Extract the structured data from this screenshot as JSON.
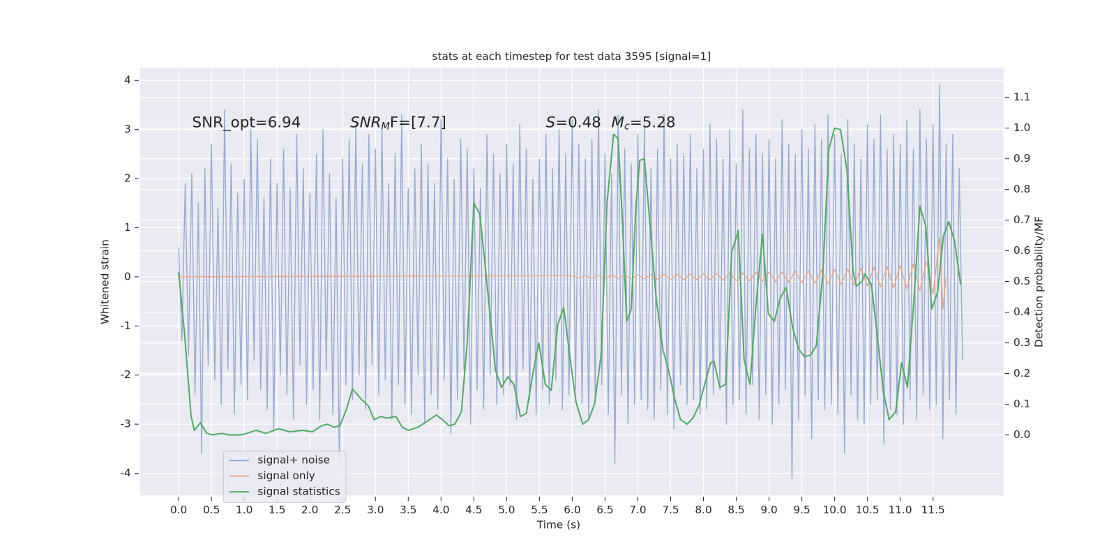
{
  "chart_data": {
    "type": "line",
    "title": "stats at each timestep for test data 3595 [signal=1]",
    "x_label": "Time (s)",
    "y_label": "Whitened strain",
    "y2_label": "Detection probability/MF",
    "xlim": [
      -0.586,
      12.575
    ],
    "ylim": [
      -4.45,
      4.26
    ],
    "y2lim": [
      -0.197,
      1.197
    ],
    "xticks": [
      {
        "value": 0,
        "label": "0.0"
      },
      0.5,
      {
        "value": 1,
        "label": "1.0"
      },
      1.5,
      {
        "value": 2,
        "label": "2.0"
      },
      2.5,
      {
        "value": 3,
        "label": "3.0"
      },
      3.5,
      {
        "value": 4,
        "label": "4.0"
      },
      4.5,
      {
        "value": 5,
        "label": "5.0"
      },
      5.5,
      {
        "value": 6,
        "label": "6.0"
      },
      6.5,
      {
        "value": 7,
        "label": "7.0"
      },
      7.5,
      {
        "value": 8,
        "label": "8.0"
      },
      8.5,
      {
        "value": 9,
        "label": "9.0"
      },
      9.5,
      {
        "value": 10,
        "label": "10.0"
      },
      10.5,
      {
        "value": 11,
        "label": "11.0"
      },
      11.5
    ],
    "yticks": [
      -4,
      -3,
      -2,
      -1,
      0,
      1,
      2,
      3,
      4
    ],
    "y2ticks": [
      {
        "value": 0,
        "label": "0.0"
      },
      0.1,
      0.2,
      0.3,
      0.4,
      0.5,
      0.6,
      0.7,
      0.8,
      0.9,
      {
        "value": 1,
        "label": "1.0"
      },
      1.1
    ],
    "grid": true,
    "legend": "lower left",
    "annotations": [
      {
        "text": "SNR_opt=6.94"
      },
      {
        "base": "SNR",
        "sub": "M",
        "tail": "F=[7.7]"
      },
      {
        "base": "S",
        "tail": "=0.48"
      },
      {
        "base": "M",
        "sub": "c",
        "tail": "=5.28"
      }
    ],
    "series": [
      {
        "name": "signal+ noise",
        "color": "#9aabd0",
        "x": [
          0,
          0.05,
          0.1,
          0.15,
          0.2,
          0.25,
          0.3,
          0.35,
          0.4,
          0.45,
          0.5,
          0.55,
          0.6,
          0.65,
          0.7,
          0.75,
          0.8,
          0.85,
          0.9,
          0.95,
          1,
          1.05,
          1.1,
          1.15,
          1.2,
          1.25,
          1.3,
          1.35,
          1.4,
          1.45,
          1.5,
          1.55,
          1.6,
          1.65,
          1.7,
          1.75,
          1.8,
          1.85,
          1.9,
          1.95,
          2,
          2.05,
          2.1,
          2.15,
          2.2,
          2.25,
          2.3,
          2.35,
          2.4,
          2.45,
          2.5,
          2.55,
          2.6,
          2.65,
          2.7,
          2.75,
          2.8,
          2.85,
          2.9,
          2.95,
          3,
          3.05,
          3.1,
          3.15,
          3.2,
          3.25,
          3.3,
          3.35,
          3.4,
          3.45,
          3.5,
          3.55,
          3.6,
          3.65,
          3.7,
          3.75,
          3.8,
          3.85,
          3.9,
          3.95,
          4,
          4.05,
          4.1,
          4.15,
          4.2,
          4.25,
          4.3,
          4.35,
          4.4,
          4.45,
          4.5,
          4.55,
          4.6,
          4.65,
          4.7,
          4.75,
          4.8,
          4.85,
          4.9,
          4.95,
          5,
          5.05,
          5.1,
          5.15,
          5.2,
          5.25,
          5.3,
          5.35,
          5.4,
          5.45,
          5.5,
          5.55,
          5.6,
          5.65,
          5.7,
          5.75,
          5.8,
          5.85,
          5.9,
          5.95,
          6,
          6.05,
          6.1,
          6.15,
          6.2,
          6.25,
          6.3,
          6.35,
          6.4,
          6.45,
          6.5,
          6.55,
          6.6,
          6.65,
          6.7,
          6.75,
          6.8,
          6.85,
          6.9,
          6.95,
          7,
          7.05,
          7.1,
          7.15,
          7.2,
          7.25,
          7.3,
          7.35,
          7.4,
          7.45,
          7.5,
          7.55,
          7.6,
          7.65,
          7.7,
          7.75,
          7.8,
          7.85,
          7.9,
          7.95,
          8,
          8.05,
          8.1,
          8.15,
          8.2,
          8.25,
          8.3,
          8.35,
          8.4,
          8.45,
          8.5,
          8.55,
          8.6,
          8.65,
          8.7,
          8.75,
          8.8,
          8.85,
          8.9,
          8.95,
          9,
          9.05,
          9.1,
          9.15,
          9.2,
          9.25,
          9.3,
          9.35,
          9.4,
          9.45,
          9.5,
          9.55,
          9.6,
          9.65,
          9.7,
          9.75,
          9.8,
          9.85,
          9.9,
          9.95,
          10,
          10.05,
          10.1,
          10.15,
          10.2,
          10.25,
          10.3,
          10.35,
          10.4,
          10.45,
          10.5,
          10.55,
          10.6,
          10.65,
          10.7,
          10.75,
          10.8,
          10.85,
          10.9,
          10.95,
          11,
          11.05,
          11.1,
          11.15,
          11.2,
          11.25,
          11.3,
          11.35,
          11.4,
          11.45,
          11.5,
          11.55,
          11.6,
          11.65,
          11.7,
          11.75,
          11.8,
          11.85,
          11.9,
          11.95
        ],
        "values": [
          0.6,
          -1.3,
          1.9,
          -1.6,
          2.1,
          -2.4,
          1.5,
          -3.6,
          2.2,
          -1.8,
          2.7,
          -2.1,
          1.4,
          -2.6,
          3.4,
          -1.9,
          2.3,
          -2.8,
          1.7,
          -2.2,
          2.0,
          -2.5,
          3.0,
          -1.7,
          2.8,
          -2.3,
          1.6,
          -2.7,
          2.4,
          -3.1,
          1.9,
          -2.0,
          2.6,
          -2.4,
          1.8,
          -2.9,
          2.9,
          -1.8,
          2.2,
          -2.6,
          1.7,
          -2.3,
          2.5,
          -2.9,
          3.0,
          -1.9,
          2.1,
          -2.8,
          1.6,
          -3.8,
          2.4,
          -2.2,
          2.8,
          -2.5,
          3.1,
          -2.0,
          2.3,
          -2.7,
          2.9,
          -1.8,
          2.6,
          -2.4,
          3.0,
          -2.1,
          1.9,
          -2.9,
          2.5,
          -2.2,
          3.3,
          -2.6,
          1.8,
          -2.8,
          2.2,
          -2.0,
          2.7,
          -3.0,
          2.3,
          -2.4,
          1.9,
          -2.7,
          3.2,
          -2.1,
          2.4,
          -3.2,
          2.0,
          -2.5,
          2.8,
          -1.9,
          2.6,
          -3.0,
          2.2,
          -2.3,
          1.8,
          -2.7,
          2.9,
          -2.0,
          2.5,
          -2.6,
          2.1,
          -2.4,
          2.7,
          -2.2,
          2.3,
          -2.9,
          3.1,
          -1.9,
          2.6,
          -2.5,
          2.0,
          -2.8,
          2.4,
          -2.3,
          2.9,
          -2.6,
          2.2,
          -2.1,
          3.0,
          -2.7,
          2.5,
          -2.4,
          3.2,
          -2.3,
          2.7,
          -2.6,
          2.4,
          -2.9,
          2.8,
          -2.5,
          3.4,
          -2.2,
          2.5,
          -2.8,
          2.1,
          -3.8,
          3.3,
          -2.4,
          2.6,
          -3.0,
          2.3,
          -2.6,
          2.9,
          -2.5,
          3.1,
          -2.7,
          2.2,
          -2.9,
          2.6,
          -2.3,
          3.3,
          -2.8,
          2.4,
          -3.1,
          2.7,
          -2.2,
          2.5,
          -2.6,
          2.9,
          -2.5,
          2.2,
          -2.8,
          2.6,
          -2.7,
          3.1,
          -2.4,
          2.8,
          -2.3,
          2.4,
          -3.0,
          3.0,
          -2.6,
          2.3,
          -2.5,
          3.4,
          -2.8,
          2.6,
          -2.2,
          2.9,
          -2.9,
          2.5,
          -2.4,
          2.8,
          -3.0,
          2.4,
          -2.6,
          3.2,
          -2.3,
          2.7,
          -4.1,
          2.5,
          -2.9,
          3.0,
          -2.4,
          2.6,
          -3.3,
          3.1,
          -2.5,
          2.8,
          -2.7,
          3.3,
          -2.6,
          2.9,
          -2.8,
          2.5,
          -3.6,
          3.2,
          -2.4,
          2.7,
          -2.9,
          2.4,
          -3.0,
          3.1,
          -2.6,
          2.8,
          -2.5,
          3.3,
          -3.4,
          2.6,
          -2.7,
          2.9,
          -2.8,
          2.7,
          -3.0,
          3.2,
          -2.5,
          2.6,
          -2.9,
          3.4,
          -2.4,
          2.8,
          -2.7,
          3.1,
          -2.6,
          3.9,
          -3.3,
          2.7,
          -2.5,
          2.9,
          -2.8,
          2.2,
          -1.7
        ]
      },
      {
        "name": "signal only",
        "color": "#e6a88a",
        "x": [
          0,
          6.0,
          6.1,
          6.2,
          6.3,
          6.4,
          6.5,
          6.6,
          6.7,
          6.8,
          6.9,
          7.0,
          7.1,
          7.2,
          7.3,
          7.4,
          7.5,
          7.6,
          7.7,
          7.8,
          7.9,
          8.0,
          8.1,
          8.2,
          8.3,
          8.4,
          8.5,
          8.6,
          8.7,
          8.8,
          8.9,
          9.0,
          9.1,
          9.2,
          9.3,
          9.4,
          9.5,
          9.6,
          9.7,
          9.8,
          9.9,
          10.0,
          10.1,
          10.2,
          10.3,
          10.4,
          10.5,
          10.6,
          10.7,
          10.8,
          10.9,
          11.0,
          11.1,
          11.2,
          11.3,
          11.4,
          11.5,
          11.6,
          11.65,
          11.7
        ],
        "values": [
          0,
          0.02,
          -0.02,
          0.02,
          -0.025,
          0.025,
          -0.03,
          0.03,
          -0.03,
          0.035,
          -0.035,
          0.04,
          -0.04,
          0.045,
          -0.045,
          0.05,
          -0.05,
          0.055,
          -0.055,
          0.06,
          -0.06,
          0.065,
          -0.065,
          0.07,
          -0.07,
          0.075,
          -0.08,
          0.08,
          -0.085,
          0.09,
          -0.09,
          0.1,
          -0.1,
          0.105,
          -0.11,
          0.115,
          -0.12,
          0.125,
          -0.13,
          0.135,
          -0.14,
          0.15,
          -0.155,
          0.16,
          -0.17,
          0.175,
          -0.185,
          0.19,
          -0.2,
          0.21,
          -0.22,
          0.23,
          -0.245,
          0.26,
          -0.28,
          0.31,
          -0.35,
          0.8,
          -0.65,
          0
        ]
      },
      {
        "name": "signal statistics",
        "color": "#55a868",
        "axis": "y2",
        "x": [
          0,
          0.09,
          0.19,
          0.24,
          0.33,
          0.43,
          0.52,
          0.66,
          0.76,
          0.95,
          1.04,
          1.18,
          1.33,
          1.52,
          1.7,
          1.89,
          2.04,
          2.18,
          2.27,
          2.37,
          2.46,
          2.56,
          2.65,
          2.79,
          2.89,
          2.98,
          3.08,
          3.17,
          3.31,
          3.41,
          3.5,
          3.65,
          3.79,
          3.93,
          4.02,
          4.12,
          4.21,
          4.31,
          4.4,
          4.5,
          4.59,
          4.69,
          4.83,
          4.92,
          5.02,
          5.11,
          5.21,
          5.3,
          5.4,
          5.49,
          5.59,
          5.68,
          5.78,
          5.87,
          5.97,
          6.06,
          6.16,
          6.25,
          6.34,
          6.44,
          6.53,
          6.63,
          6.7,
          6.76,
          6.83,
          6.9,
          6.97,
          7.03,
          7.1,
          7.19,
          7.28,
          7.38,
          7.47,
          7.56,
          7.65,
          7.75,
          7.84,
          7.93,
          8.02,
          8.11,
          8.16,
          8.25,
          8.34,
          8.43,
          8.53,
          8.62,
          8.71,
          8.8,
          8.9,
          8.99,
          9.08,
          9.17,
          9.26,
          9.36,
          9.45,
          9.54,
          9.63,
          9.72,
          9.82,
          9.91,
          10.0,
          10.09,
          10.19,
          10.28,
          10.33,
          10.42,
          10.46,
          10.56,
          10.65,
          10.74,
          10.83,
          10.93,
          11.02,
          11.11,
          11.21,
          11.3,
          11.39,
          11.48,
          11.57,
          11.66,
          11.74,
          11.83,
          11.92
        ],
        "values": [
          0.53,
          0.33,
          0.06,
          0.015,
          0.04,
          0.005,
          0.0,
          0.005,
          0.0,
          0.0,
          0.005,
          0.015,
          0.005,
          0.02,
          0.01,
          0.015,
          0.01,
          0.03,
          0.035,
          0.025,
          0.03,
          0.085,
          0.15,
          0.115,
          0.095,
          0.05,
          0.06,
          0.055,
          0.06,
          0.025,
          0.015,
          0.025,
          0.045,
          0.065,
          0.05,
          0.03,
          0.035,
          0.075,
          0.305,
          0.755,
          0.72,
          0.515,
          0.21,
          0.155,
          0.19,
          0.165,
          0.06,
          0.07,
          0.2,
          0.3,
          0.165,
          0.145,
          0.36,
          0.415,
          0.245,
          0.105,
          0.035,
          0.05,
          0.1,
          0.26,
          0.755,
          0.98,
          0.965,
          0.72,
          0.37,
          0.41,
          0.745,
          0.895,
          0.9,
          0.675,
          0.445,
          0.28,
          0.21,
          0.12,
          0.05,
          0.035,
          0.055,
          0.095,
          0.165,
          0.235,
          0.24,
          0.155,
          0.165,
          0.595,
          0.665,
          0.245,
          0.165,
          0.42,
          0.655,
          0.395,
          0.37,
          0.445,
          0.48,
          0.35,
          0.28,
          0.255,
          0.26,
          0.29,
          0.525,
          0.93,
          1.0,
          0.995,
          0.86,
          0.535,
          0.485,
          0.5,
          0.525,
          0.49,
          0.325,
          0.145,
          0.05,
          0.075,
          0.235,
          0.155,
          0.445,
          0.745,
          0.68,
          0.41,
          0.465,
          0.65,
          0.695,
          0.63,
          0.49
        ]
      }
    ]
  }
}
